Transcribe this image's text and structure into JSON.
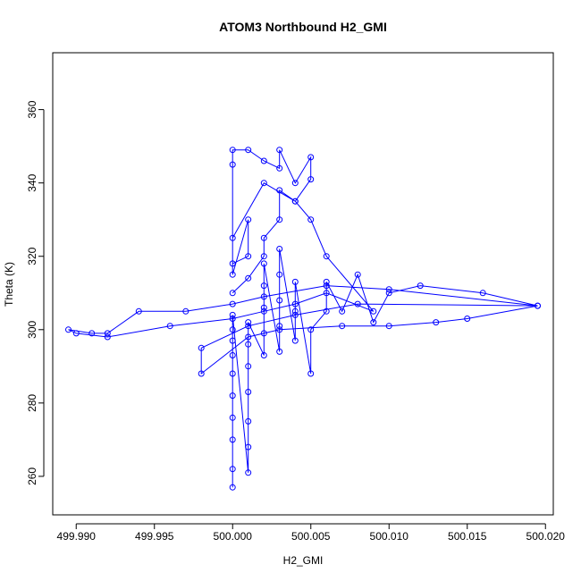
{
  "chart_data": {
    "type": "scatter",
    "title": "ATOM3 Northbound H2_GMI",
    "xlabel": "H2_GMI",
    "ylabel": "Theta (K)",
    "xlim": [
      499.9885,
      500.0205
    ],
    "ylim": [
      249.5,
      375.5
    ],
    "x_ticks": [
      499.99,
      499.995,
      500.0,
      500.005,
      500.01,
      500.015,
      500.02
    ],
    "x_tick_labels": [
      "499.990",
      "499.995",
      "500.000",
      "500.005",
      "500.010",
      "500.015",
      "500.020"
    ],
    "y_ticks": [
      260,
      280,
      300,
      320,
      340,
      360
    ],
    "y_tick_labels": [
      "260",
      "280",
      "300",
      "320",
      "340",
      "360"
    ],
    "grid": false,
    "legend": "none",
    "series_color": "#0000ff",
    "marker": "open-circle",
    "connect_points": true,
    "series": [
      {
        "x": [
          500.0,
          500.0,
          500.0,
          500.0,
          500.0,
          500.0,
          500.0,
          500.0,
          500.0,
          500.0,
          500.001,
          500.001,
          500.001,
          500.001,
          500.001,
          500.001,
          500.001,
          500.002,
          500.002,
          500.002,
          500.002,
          500.002,
          500.003,
          500.003,
          500.003,
          500.003,
          500.003,
          500.004,
          500.004,
          500.004,
          500.005,
          500.005,
          500.006,
          500.006,
          500.007,
          500.008,
          500.009,
          500.01,
          500.012,
          500.016,
          500.0195,
          500.015,
          500.013,
          500.01,
          500.007,
          500.003,
          500.001,
          499.998,
          499.998,
          500.001,
          500.004,
          500.008,
          500.0195,
          500.01,
          500.006,
          500.002,
          500.0,
          499.997,
          499.994,
          499.992,
          499.991,
          499.9895,
          499.99,
          499.992,
          499.996,
          500.0,
          500.002,
          500.004,
          500.006,
          500.009,
          500.006,
          500.005,
          500.004,
          500.002,
          500.0,
          500.0,
          500.001,
          500.001,
          500.0,
          500.0,
          500.0,
          500.001,
          500.002,
          500.003,
          500.003,
          500.004,
          500.005,
          500.005,
          500.004,
          500.003,
          500.003,
          500.002,
          500.002,
          500.001,
          500.0
        ],
        "y": [
          257,
          262,
          270,
          276,
          282,
          288,
          293,
          297,
          300,
          304,
          261,
          268,
          275,
          283,
          290,
          296,
          302,
          293,
          299,
          306,
          312,
          318,
          294,
          301,
          308,
          315,
          322,
          297,
          305,
          313,
          288,
          300,
          305,
          313,
          305,
          315,
          302,
          310,
          312,
          310,
          306.5,
          303,
          302,
          301,
          301,
          300,
          298,
          288,
          295,
          301,
          304,
          307,
          306.5,
          311,
          312,
          309,
          307,
          305,
          305,
          299,
          299,
          300,
          299,
          298,
          301,
          303,
          305,
          307,
          310,
          305,
          320,
          330,
          335,
          340,
          325,
          318,
          320,
          330,
          315,
          345,
          349,
          349,
          346,
          344,
          349,
          340,
          347,
          341,
          335,
          338,
          330,
          325,
          320,
          314,
          310
        ]
      }
    ]
  }
}
